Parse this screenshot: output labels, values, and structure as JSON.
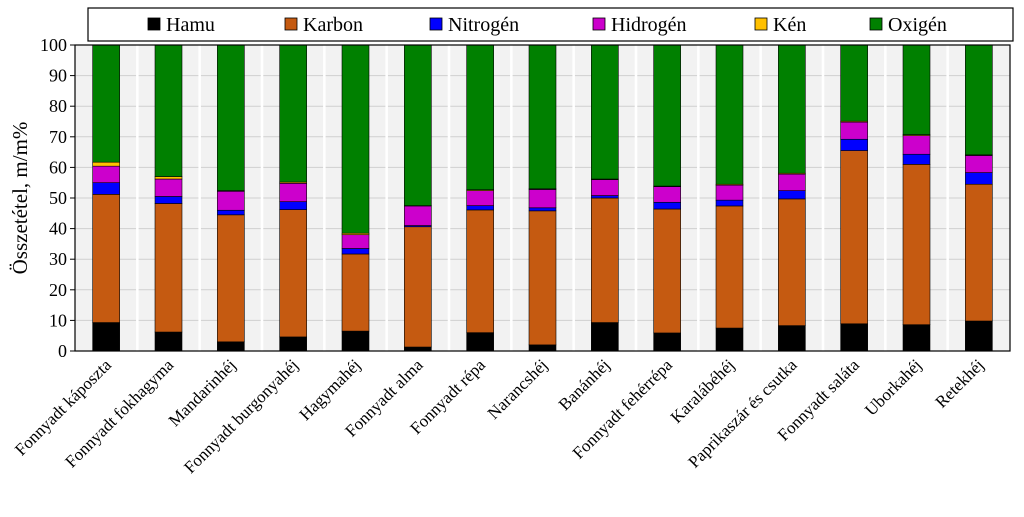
{
  "chart_data": {
    "type": "bar",
    "stacked": true,
    "ylabel": "Összetétel, m/m%",
    "xlabel": "",
    "ylim": [
      0,
      100
    ],
    "yticks": [
      0,
      10,
      20,
      30,
      40,
      50,
      60,
      70,
      80,
      90,
      100
    ],
    "grid": true,
    "legend_position": "top",
    "categories": [
      "Fonnyadt káposzta",
      "Fonnyadt fokhagyma",
      "Mandarinhéj",
      "Fonnyadt burgonyahéj",
      "Hagymahéj",
      "Fonnyadt alma",
      "Fonnyadt répa",
      "Narancshéj",
      "Banánhéj",
      "Fonnyadt fehérrépa",
      "Karalábéhéj",
      "Paprikaszár és csutka",
      "Fonnyadt saláta",
      "Uborkahéj",
      "Retekhéj"
    ],
    "series": [
      {
        "name": "Hamu",
        "color": "#000000",
        "values": [
          9.3,
          6.2,
          3.0,
          4.6,
          6.5,
          1.3,
          6.0,
          2.0,
          9.3,
          5.9,
          7.5,
          8.3,
          8.9,
          8.6,
          9.8
        ]
      },
      {
        "name": "Karbon",
        "color": "#C55A11",
        "values": [
          41.9,
          42.0,
          41.5,
          41.6,
          25.2,
          39.3,
          40.1,
          43.8,
          40.7,
          40.5,
          39.9,
          41.4,
          56.6,
          52.4,
          44.7
        ]
      },
      {
        "name": "Nitrogén",
        "color": "#0000FF",
        "values": [
          3.8,
          2.3,
          1.5,
          2.6,
          1.8,
          0.4,
          1.4,
          1.0,
          0.8,
          2.2,
          1.9,
          2.7,
          3.7,
          3.3,
          3.8
        ]
      },
      {
        "name": "Hidrogén",
        "color": "#CC00CC",
        "values": [
          5.4,
          5.7,
          6.2,
          6.0,
          4.5,
          6.4,
          4.9,
          6.0,
          5.2,
          5.1,
          4.9,
          5.4,
          5.6,
          6.1,
          5.6
        ]
      },
      {
        "name": "Kén",
        "color": "#FFC000",
        "values": [
          1.3,
          0.8,
          0.2,
          0.4,
          0.5,
          0.1,
          0.3,
          0.2,
          0.2,
          0.2,
          0.3,
          0.3,
          0.3,
          0.3,
          0.2
        ]
      },
      {
        "name": "Oxigén",
        "color": "#008000",
        "values": [
          38.3,
          43.0,
          47.6,
          44.8,
          61.5,
          52.5,
          47.3,
          47.0,
          43.8,
          46.1,
          45.5,
          41.9,
          24.9,
          29.3,
          35.9
        ]
      }
    ]
  }
}
